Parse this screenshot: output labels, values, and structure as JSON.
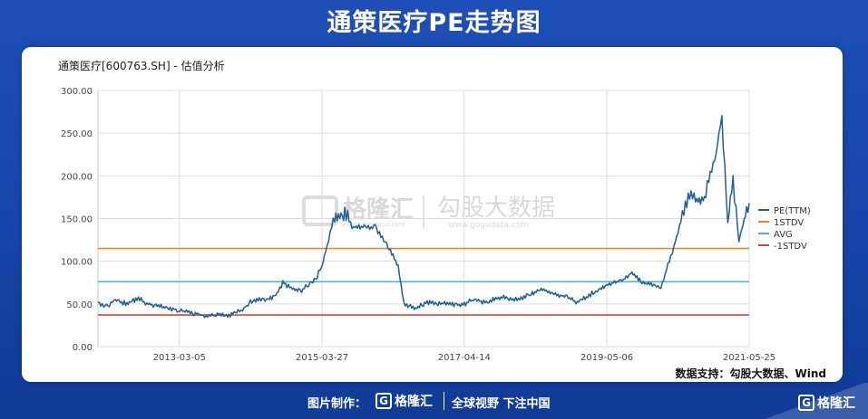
{
  "page": {
    "title": "通策医疗PE走势图"
  },
  "chart_data": {
    "type": "line",
    "title": "通策医疗[600763.SH] - 估值分析",
    "xlabel": "",
    "ylabel": "",
    "ylim": [
      0,
      300
    ],
    "yticks": [
      "0.00",
      "50.00",
      "100.00",
      "150.00",
      "200.00",
      "250.00",
      "300.00"
    ],
    "xticks": [
      "2013-03-05",
      "2015-03-27",
      "2017-04-14",
      "2019-05-06",
      "2021-05-25"
    ],
    "x_start": "2012-01-01",
    "x_end": "2021-05-25",
    "grid": true,
    "legend_position": "right",
    "series": [
      {
        "name": "PE(TTM)",
        "color": "#1f5f93",
        "points": [
          [
            "2012-01-01",
            52
          ],
          [
            "2012-02-15",
            47
          ],
          [
            "2012-04-01",
            55
          ],
          [
            "2012-06-01",
            50
          ],
          [
            "2012-08-01",
            57
          ],
          [
            "2012-09-15",
            50
          ],
          [
            "2012-11-01",
            48
          ],
          [
            "2013-01-01",
            45
          ],
          [
            "2013-03-01",
            43
          ],
          [
            "2013-05-01",
            40
          ],
          [
            "2013-07-01",
            37
          ],
          [
            "2013-08-01",
            35
          ],
          [
            "2013-09-15",
            38
          ],
          [
            "2013-11-01",
            36
          ],
          [
            "2014-01-01",
            40
          ],
          [
            "2014-02-15",
            45
          ],
          [
            "2014-03-15",
            52
          ],
          [
            "2014-05-01",
            56
          ],
          [
            "2014-06-15",
            54
          ],
          [
            "2014-08-01",
            62
          ],
          [
            "2014-09-01",
            75
          ],
          [
            "2014-10-15",
            68
          ],
          [
            "2014-12-01",
            65
          ],
          [
            "2015-01-15",
            72
          ],
          [
            "2015-03-01",
            82
          ],
          [
            "2015-04-01",
            100
          ],
          [
            "2015-05-01",
            125
          ],
          [
            "2015-06-01",
            155
          ],
          [
            "2015-08-01",
            155
          ],
          [
            "2015-09-01",
            140
          ],
          [
            "2016-01-01",
            140
          ],
          [
            "2016-03-01",
            120
          ],
          [
            "2016-05-01",
            95
          ],
          [
            "2016-06-01",
            50
          ],
          [
            "2016-08-01",
            45
          ],
          [
            "2016-10-01",
            52
          ],
          [
            "2017-01-01",
            50
          ],
          [
            "2017-04-01",
            48
          ],
          [
            "2017-06-01",
            55
          ],
          [
            "2017-08-01",
            52
          ],
          [
            "2017-11-01",
            58
          ],
          [
            "2018-02-01",
            55
          ],
          [
            "2018-04-01",
            62
          ],
          [
            "2018-06-01",
            68
          ],
          [
            "2018-08-01",
            62
          ],
          [
            "2018-10-01",
            58
          ],
          [
            "2018-12-01",
            52
          ],
          [
            "2019-02-01",
            60
          ],
          [
            "2019-04-01",
            68
          ],
          [
            "2019-06-01",
            74
          ],
          [
            "2019-08-01",
            78
          ],
          [
            "2019-09-15",
            87
          ],
          [
            "2019-11-01",
            76
          ],
          [
            "2020-01-01",
            72
          ],
          [
            "2020-02-15",
            70
          ],
          [
            "2020-03-15",
            90
          ],
          [
            "2020-04-15",
            110
          ],
          [
            "2020-05-15",
            135
          ],
          [
            "2020-06-15",
            160
          ],
          [
            "2020-07-15",
            180
          ],
          [
            "2020-08-15",
            168
          ],
          [
            "2020-10-01",
            175
          ],
          [
            "2020-11-01",
            198
          ],
          [
            "2020-12-01",
            225
          ],
          [
            "2021-01-01",
            270
          ],
          [
            "2021-02-01",
            145
          ],
          [
            "2021-03-01",
            195
          ],
          [
            "2021-04-01",
            125
          ],
          [
            "2021-05-25",
            168
          ]
        ]
      },
      {
        "name": "1STDV",
        "color": "#f2851f",
        "value": 115
      },
      {
        "name": "AVG",
        "color": "#4db8c4",
        "value": 76
      },
      {
        "name": "-1STDV",
        "color": "#d9433b",
        "value": 37
      }
    ]
  },
  "watermark": {
    "brand": "格隆汇",
    "brand_url": "www.gelonghui.com",
    "partner": "勾股大数据",
    "partner_url": "www.gogudata.com"
  },
  "source_note": "数据支持：勾股大数据、Wind",
  "footer": {
    "made_by": "图片制作：",
    "brand": "格隆汇",
    "slogan": "全球视野 下注中国",
    "corner_brand": "格隆汇"
  }
}
